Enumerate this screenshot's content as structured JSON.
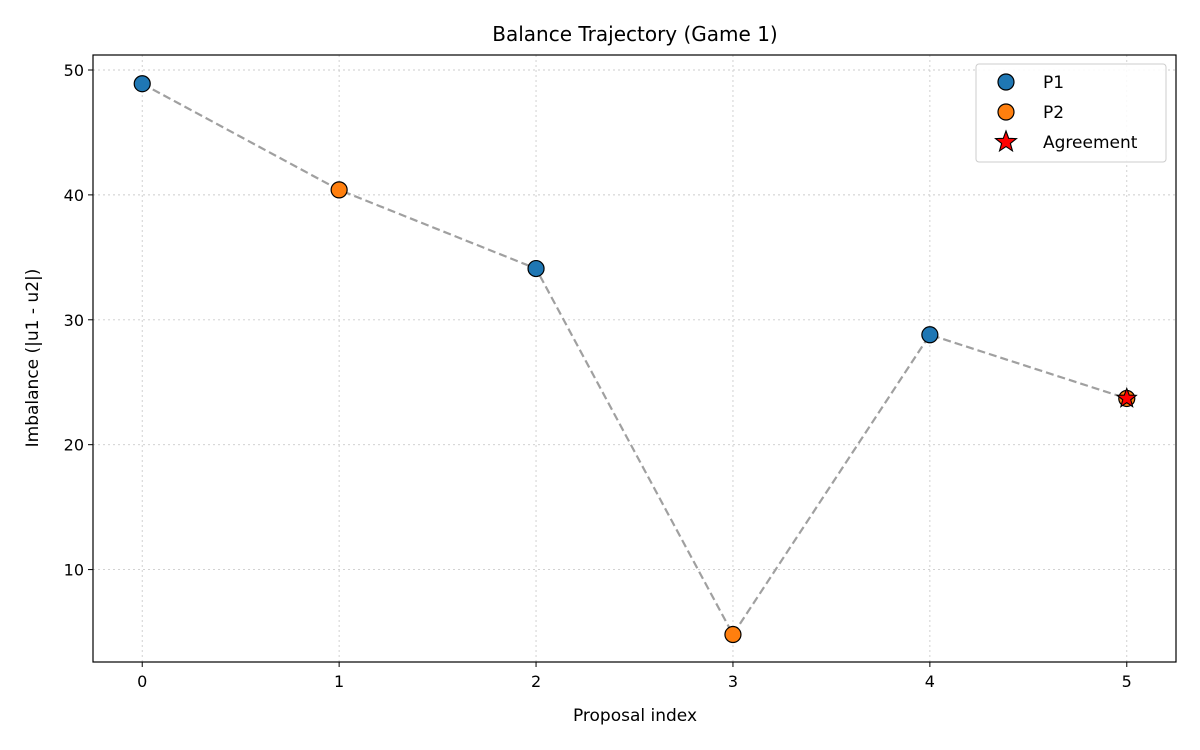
{
  "chart_data": {
    "type": "line",
    "title": "Balance Trajectory (Game 1)",
    "xlabel": "Proposal index",
    "ylabel": "Imbalance (|u1 - u2|)",
    "xlim": [
      -0.25,
      5.25
    ],
    "ylim": [
      2.6,
      51.2
    ],
    "x_ticks": [
      0,
      1,
      2,
      3,
      4,
      5
    ],
    "y_ticks": [
      10,
      20,
      30,
      40,
      50
    ],
    "grid": true,
    "legend_position": "top-right",
    "line": {
      "x": [
        0,
        1,
        2,
        3,
        4,
        5
      ],
      "y": [
        48.9,
        40.4,
        34.1,
        4.8,
        28.8,
        23.7
      ],
      "color": "#a0a0a0",
      "style": "dashed"
    },
    "series": [
      {
        "name": "P1",
        "color": "#1f77b4",
        "marker": "circle",
        "x": [
          0,
          2,
          4
        ],
        "y": [
          48.9,
          34.1,
          28.8
        ]
      },
      {
        "name": "P2",
        "color": "#ff7f0e",
        "marker": "circle",
        "x": [
          1,
          3,
          5
        ],
        "y": [
          40.4,
          4.8,
          23.7
        ]
      },
      {
        "name": "Agreement",
        "color": "#ff0000",
        "marker": "star",
        "x": [
          5
        ],
        "y": [
          23.7
        ]
      }
    ]
  }
}
